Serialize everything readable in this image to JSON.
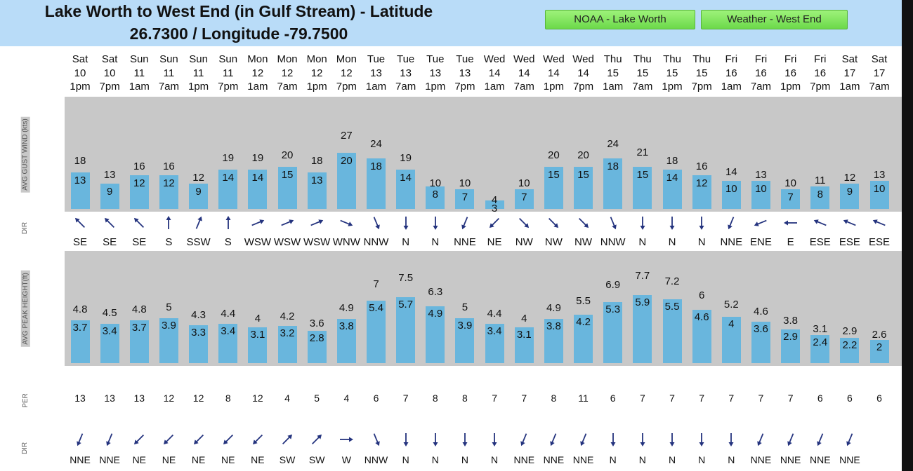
{
  "header": {
    "title_line1": "Lake Worth to West End (in Gulf Stream) - Latitude",
    "title_line2": "26.7300 / Longitude -79.7500",
    "buttons": [
      {
        "label": "NOAA - Lake Worth",
        "color": "#7ddc55"
      },
      {
        "label": "Weather - West End",
        "color": "#7ddc55"
      }
    ]
  },
  "row_labels": {
    "wind": "AVG GUST WIND (kts)",
    "wind_dir": "DIR",
    "wave": "AVG PEAK HEIGHT(ft)",
    "period": "PER",
    "wave_dir": "DIR"
  },
  "colors": {
    "bar": "#69b6dd",
    "panel": "#c8c8c8",
    "arrow": "#24337e"
  },
  "columns": [
    {
      "day": "Sat",
      "date": "10",
      "time": "1pm",
      "avg": "13",
      "gust": "18",
      "wdir": "SE",
      "height_avg": "3.7",
      "height_peak": "4.8",
      "per": "13",
      "wavedir": "NNE"
    },
    {
      "day": "Sat",
      "date": "10",
      "time": "7pm",
      "avg": "9",
      "gust": "13",
      "wdir": "SE",
      "height_avg": "3.4",
      "height_peak": "4.5",
      "per": "13",
      "wavedir": "NNE"
    },
    {
      "day": "Sun",
      "date": "11",
      "time": "1am",
      "avg": "12",
      "gust": "16",
      "wdir": "SE",
      "height_avg": "3.7",
      "height_peak": "4.8",
      "per": "13",
      "wavedir": "NE"
    },
    {
      "day": "Sun",
      "date": "11",
      "time": "7am",
      "avg": "12",
      "gust": "16",
      "wdir": "S",
      "height_avg": "3.9",
      "height_peak": "5",
      "per": "12",
      "wavedir": "NE"
    },
    {
      "day": "Sun",
      "date": "11",
      "time": "1pm",
      "avg": "9",
      "gust": "12",
      "wdir": "SSW",
      "height_avg": "3.3",
      "height_peak": "4.3",
      "per": "12",
      "wavedir": "NE"
    },
    {
      "day": "Sun",
      "date": "11",
      "time": "7pm",
      "avg": "14",
      "gust": "19",
      "wdir": "S",
      "height_avg": "3.4",
      "height_peak": "4.4",
      "per": "8",
      "wavedir": "NE"
    },
    {
      "day": "Mon",
      "date": "12",
      "time": "1am",
      "avg": "14",
      "gust": "19",
      "wdir": "WSW",
      "height_avg": "3.1",
      "height_peak": "4",
      "per": "12",
      "wavedir": "NE"
    },
    {
      "day": "Mon",
      "date": "12",
      "time": "7am",
      "avg": "15",
      "gust": "20",
      "wdir": "WSW",
      "height_avg": "3.2",
      "height_peak": "4.2",
      "per": "4",
      "wavedir": "SW"
    },
    {
      "day": "Mon",
      "date": "12",
      "time": "1pm",
      "avg": "13",
      "gust": "18",
      "wdir": "WSW",
      "height_avg": "2.8",
      "height_peak": "3.6",
      "per": "5",
      "wavedir": "SW"
    },
    {
      "day": "Mon",
      "date": "12",
      "time": "7pm",
      "avg": "20",
      "gust": "27",
      "wdir": "WNW",
      "height_avg": "3.8",
      "height_peak": "4.9",
      "per": "4",
      "wavedir": "W"
    },
    {
      "day": "Tue",
      "date": "13",
      "time": "1am",
      "avg": "18",
      "gust": "24",
      "wdir": "NNW",
      "height_avg": "5.4",
      "height_peak": "7",
      "per": "6",
      "wavedir": "NNW"
    },
    {
      "day": "Tue",
      "date": "13",
      "time": "7am",
      "avg": "14",
      "gust": "19",
      "wdir": "N",
      "height_avg": "5.7",
      "height_peak": "7.5",
      "per": "7",
      "wavedir": "N"
    },
    {
      "day": "Tue",
      "date": "13",
      "time": "1pm",
      "avg": "8",
      "gust": "10",
      "wdir": "N",
      "height_avg": "4.9",
      "height_peak": "6.3",
      "per": "8",
      "wavedir": "N"
    },
    {
      "day": "Tue",
      "date": "13",
      "time": "7pm",
      "avg": "7",
      "gust": "10",
      "wdir": "NNE",
      "height_avg": "3.9",
      "height_peak": "5",
      "per": "8",
      "wavedir": "N"
    },
    {
      "day": "Wed",
      "date": "14",
      "time": "1am",
      "avg": "3",
      "gust": "4",
      "wdir": "NE",
      "height_avg": "3.4",
      "height_peak": "4.4",
      "per": "7",
      "wavedir": "N"
    },
    {
      "day": "Wed",
      "date": "14",
      "time": "7am",
      "avg": "7",
      "gust": "10",
      "wdir": "NW",
      "height_avg": "3.1",
      "height_peak": "4",
      "per": "7",
      "wavedir": "NNE"
    },
    {
      "day": "Wed",
      "date": "14",
      "time": "1pm",
      "avg": "15",
      "gust": "20",
      "wdir": "NW",
      "height_avg": "3.8",
      "height_peak": "4.9",
      "per": "8",
      "wavedir": "NNE"
    },
    {
      "day": "Wed",
      "date": "14",
      "time": "7pm",
      "avg": "15",
      "gust": "20",
      "wdir": "NW",
      "height_avg": "4.2",
      "height_peak": "5.5",
      "per": "11",
      "wavedir": "NNE"
    },
    {
      "day": "Thu",
      "date": "15",
      "time": "1am",
      "avg": "18",
      "gust": "24",
      "wdir": "NNW",
      "height_avg": "5.3",
      "height_peak": "6.9",
      "per": "6",
      "wavedir": "N"
    },
    {
      "day": "Thu",
      "date": "15",
      "time": "7am",
      "avg": "15",
      "gust": "21",
      "wdir": "N",
      "height_avg": "5.9",
      "height_peak": "7.7",
      "per": "7",
      "wavedir": "N"
    },
    {
      "day": "Thu",
      "date": "15",
      "time": "1pm",
      "avg": "14",
      "gust": "18",
      "wdir": "N",
      "height_avg": "5.5",
      "height_peak": "7.2",
      "per": "7",
      "wavedir": "N"
    },
    {
      "day": "Thu",
      "date": "15",
      "time": "7pm",
      "avg": "12",
      "gust": "16",
      "wdir": "N",
      "height_avg": "4.6",
      "height_peak": "6",
      "per": "7",
      "wavedir": "N"
    },
    {
      "day": "Fri",
      "date": "16",
      "time": "1am",
      "avg": "10",
      "gust": "14",
      "wdir": "NNE",
      "height_avg": "4",
      "height_peak": "5.2",
      "per": "7",
      "wavedir": "N"
    },
    {
      "day": "Fri",
      "date": "16",
      "time": "7am",
      "avg": "10",
      "gust": "13",
      "wdir": "ENE",
      "height_avg": "3.6",
      "height_peak": "4.6",
      "per": "7",
      "wavedir": "NNE"
    },
    {
      "day": "Fri",
      "date": "16",
      "time": "1pm",
      "avg": "7",
      "gust": "10",
      "wdir": "E",
      "height_avg": "2.9",
      "height_peak": "3.8",
      "per": "7",
      "wavedir": "NNE"
    },
    {
      "day": "Fri",
      "date": "16",
      "time": "7pm",
      "avg": "8",
      "gust": "11",
      "wdir": "ESE",
      "height_avg": "2.4",
      "height_peak": "3.1",
      "per": "6",
      "wavedir": "NNE"
    },
    {
      "day": "Sat",
      "date": "17",
      "time": "1am",
      "avg": "9",
      "gust": "12",
      "wdir": "ESE",
      "height_avg": "2.2",
      "height_peak": "2.9",
      "per": "6",
      "wavedir": "NNE"
    },
    {
      "day": "Sat",
      "date": "17",
      "time": "7am",
      "avg": "10",
      "gust": "13",
      "wdir": "ESE",
      "height_avg": "2",
      "height_peak": "2.6",
      "per": "6",
      "wavedir": ""
    }
  ]
}
